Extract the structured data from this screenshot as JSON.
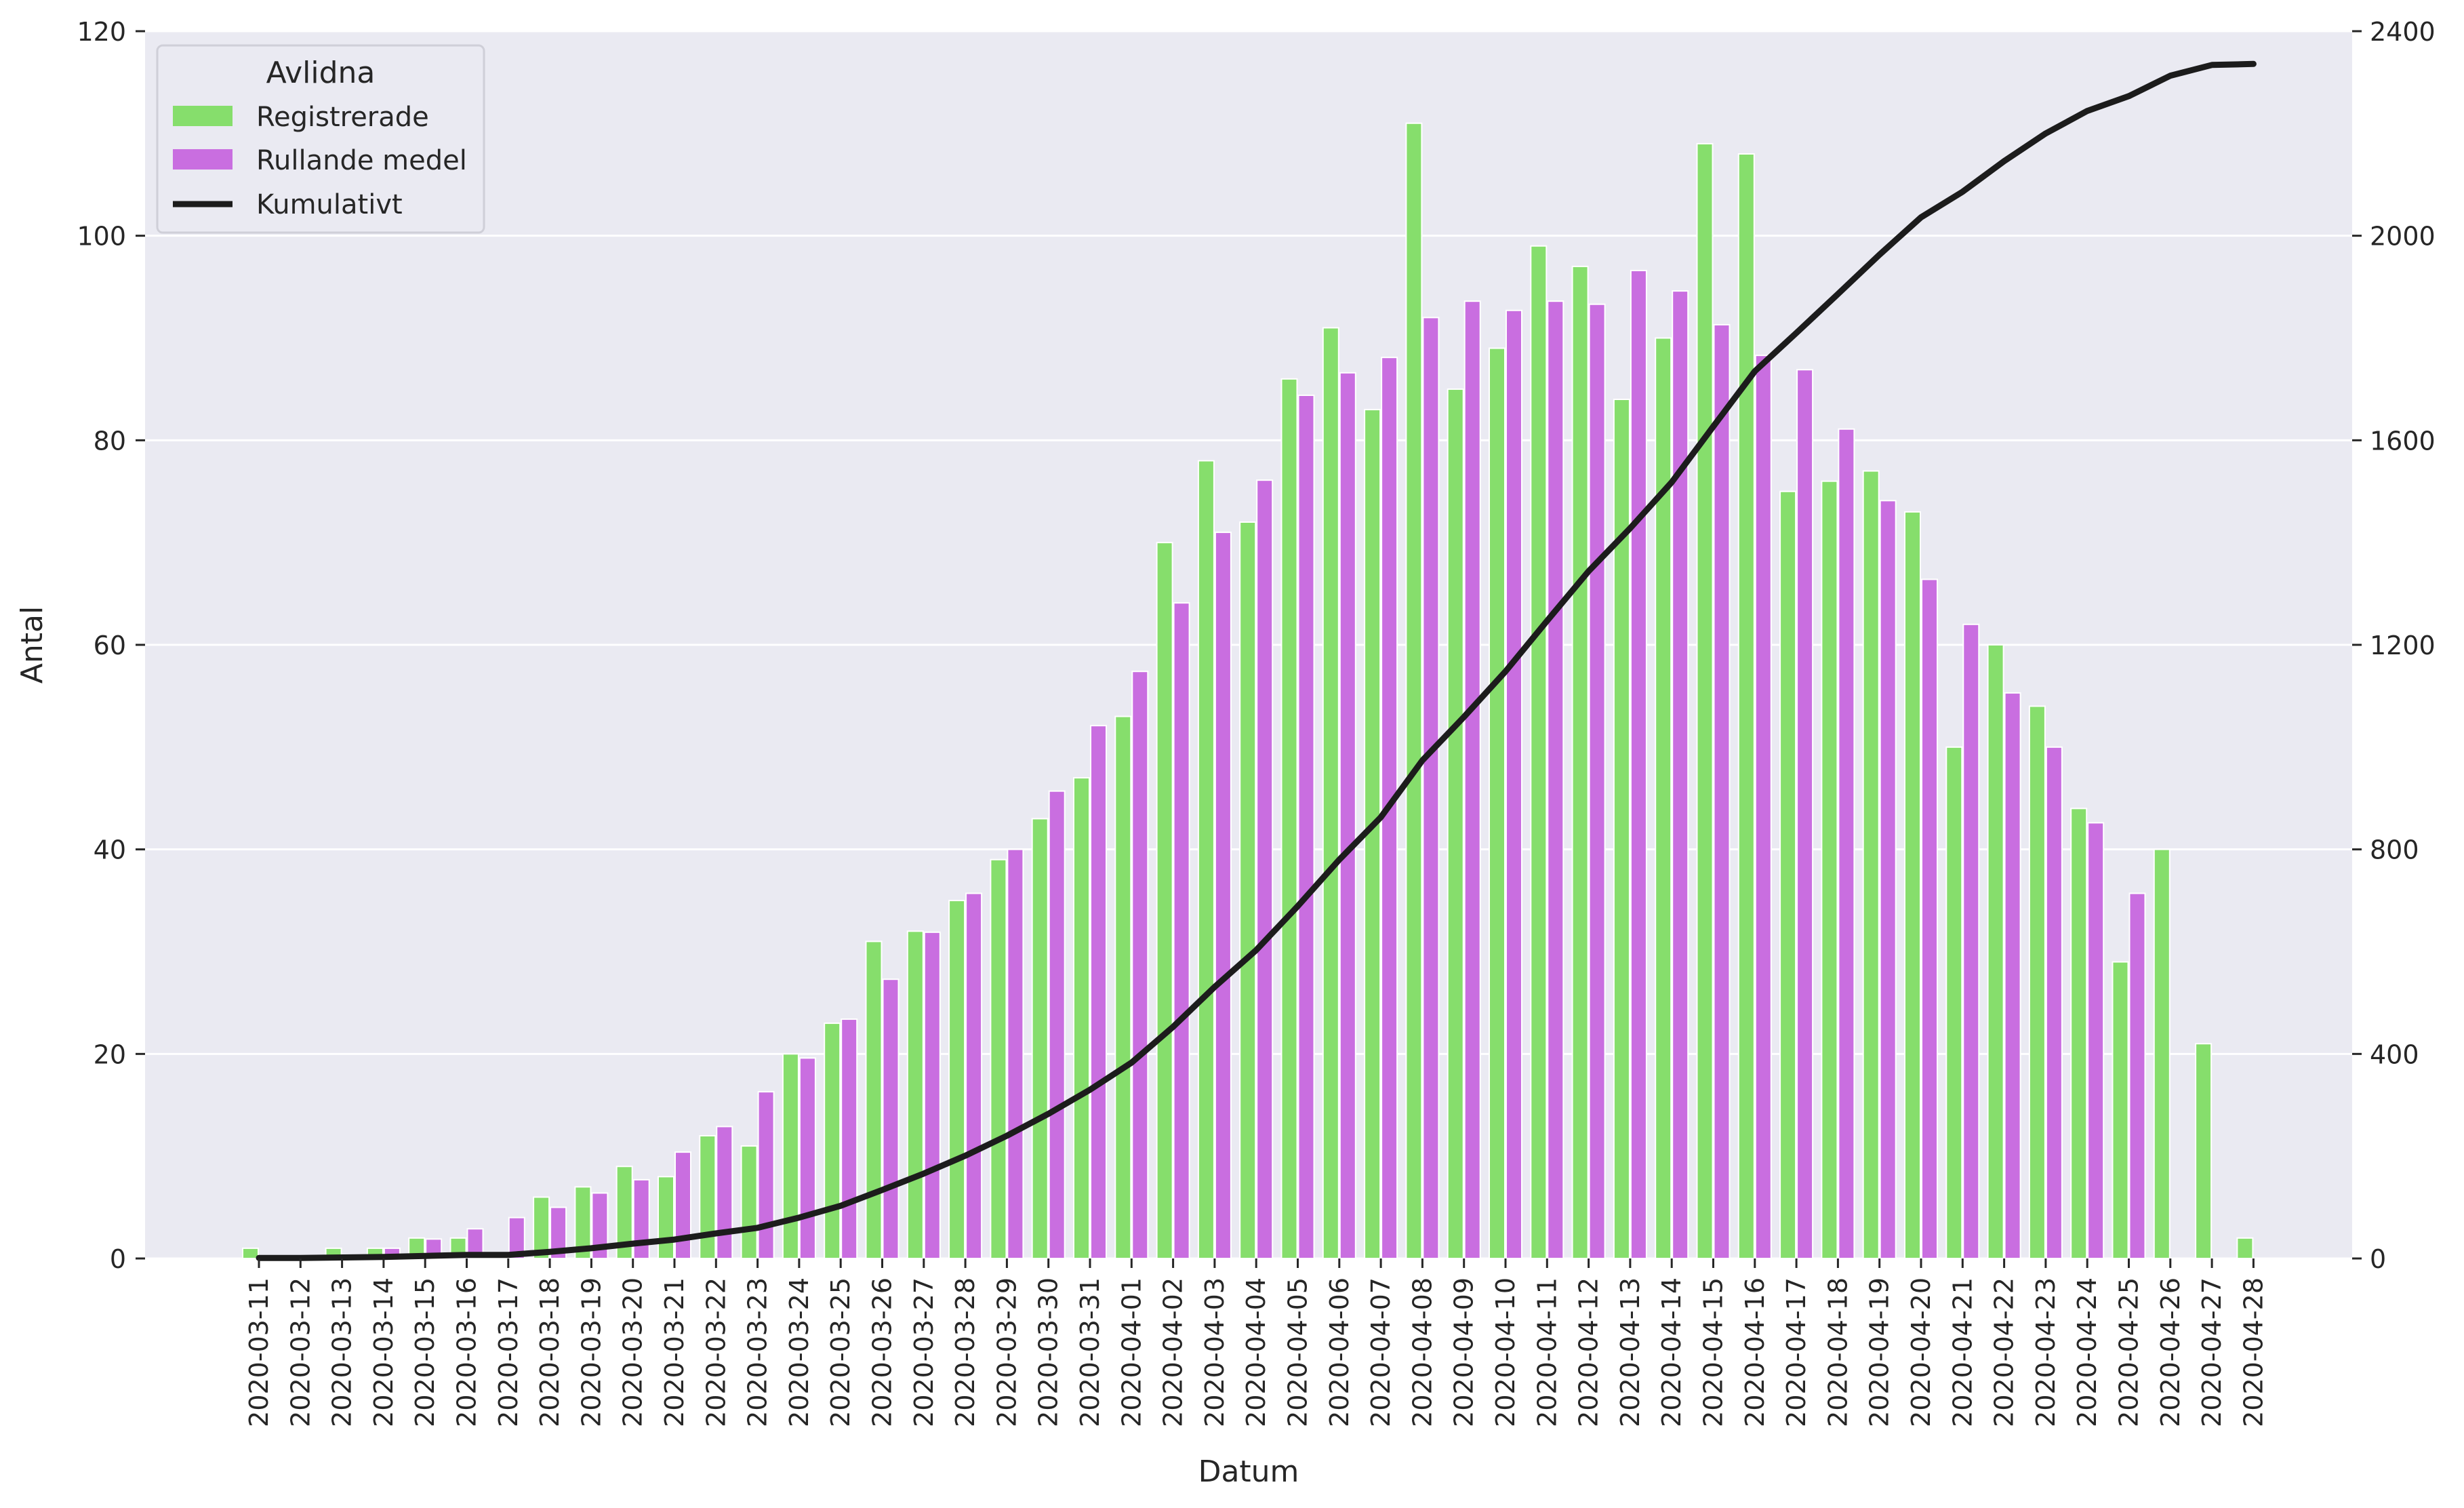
{
  "chart_data": {
    "type": "bar",
    "xlabel": "Datum",
    "ylabel": "Antal",
    "ylim": [
      0,
      120
    ],
    "y2lim": [
      0,
      2400
    ],
    "yticks": [
      "0",
      "20",
      "40",
      "60",
      "80",
      "100",
      "120"
    ],
    "y2ticks": [
      "0",
      "400",
      "800",
      "1200",
      "1600",
      "2000",
      "2400"
    ],
    "grid": true,
    "legend": {
      "title": "Avlidna",
      "placement": "top-left"
    },
    "colors": {
      "registrerade": "#86de6c",
      "rullande": "#c96ee0",
      "kumulativt": "#1c1c1c",
      "background": "#eaeaf2",
      "grid": "#ffffff"
    },
    "categories": [
      "2020-03-11",
      "2020-03-12",
      "2020-03-13",
      "2020-03-14",
      "2020-03-15",
      "2020-03-16",
      "2020-03-17",
      "2020-03-18",
      "2020-03-19",
      "2020-03-20",
      "2020-03-21",
      "2020-03-22",
      "2020-03-23",
      "2020-03-24",
      "2020-03-25",
      "2020-03-26",
      "2020-03-27",
      "2020-03-28",
      "2020-03-29",
      "2020-03-30",
      "2020-03-31",
      "2020-04-01",
      "2020-04-02",
      "2020-04-03",
      "2020-04-04",
      "2020-04-05",
      "2020-04-06",
      "2020-04-07",
      "2020-04-08",
      "2020-04-09",
      "2020-04-10",
      "2020-04-11",
      "2020-04-12",
      "2020-04-13",
      "2020-04-14",
      "2020-04-15",
      "2020-04-16",
      "2020-04-17",
      "2020-04-18",
      "2020-04-19",
      "2020-04-20",
      "2020-04-21",
      "2020-04-22",
      "2020-04-23",
      "2020-04-24",
      "2020-04-25",
      "2020-04-26",
      "2020-04-27",
      "2020-04-28"
    ],
    "series": [
      {
        "name": "Registrerade",
        "axis": "left",
        "kind": "bar",
        "values": [
          1,
          0,
          1,
          1,
          2,
          2,
          0,
          6,
          7,
          9,
          8,
          12,
          11,
          20,
          23,
          31,
          32,
          35,
          39,
          43,
          47,
          53,
          70,
          78,
          72,
          86,
          91,
          83,
          111,
          85,
          89,
          99,
          97,
          84,
          90,
          109,
          108,
          75,
          76,
          77,
          73,
          50,
          60,
          54,
          44,
          29,
          40,
          21,
          2
        ]
      },
      {
        "name": "Rullande medel",
        "axis": "left",
        "kind": "bar",
        "values": [
          0,
          0,
          0,
          1.0,
          1.9,
          2.9,
          4.0,
          5.0,
          6.4,
          7.7,
          10.4,
          12.9,
          16.3,
          19.6,
          23.4,
          27.3,
          31.9,
          35.7,
          40.0,
          45.7,
          52.1,
          57.4,
          64.1,
          71.0,
          76.1,
          84.4,
          86.6,
          88.1,
          92.0,
          93.6,
          92.7,
          93.6,
          93.3,
          96.6,
          94.6,
          91.3,
          88.3,
          86.9,
          81.1,
          74.1,
          66.4,
          62.0,
          55.3,
          50.0,
          42.6,
          35.7,
          0,
          0,
          0
        ]
      },
      {
        "name": "Kumulativt",
        "axis": "right",
        "kind": "line",
        "values": [
          1,
          1,
          2,
          3,
          5,
          7,
          7,
          13,
          20,
          29,
          37,
          49,
          60,
          80,
          103,
          134,
          166,
          201,
          240,
          283,
          330,
          383,
          453,
          531,
          603,
          689,
          780,
          863,
          974,
          1059,
          1148,
          1247,
          1344,
          1428,
          1518,
          1627,
          1735,
          1810,
          1886,
          1963,
          2036,
          2086,
          2146,
          2200,
          2244,
          2273,
          2313,
          2334,
          2336
        ]
      }
    ]
  }
}
